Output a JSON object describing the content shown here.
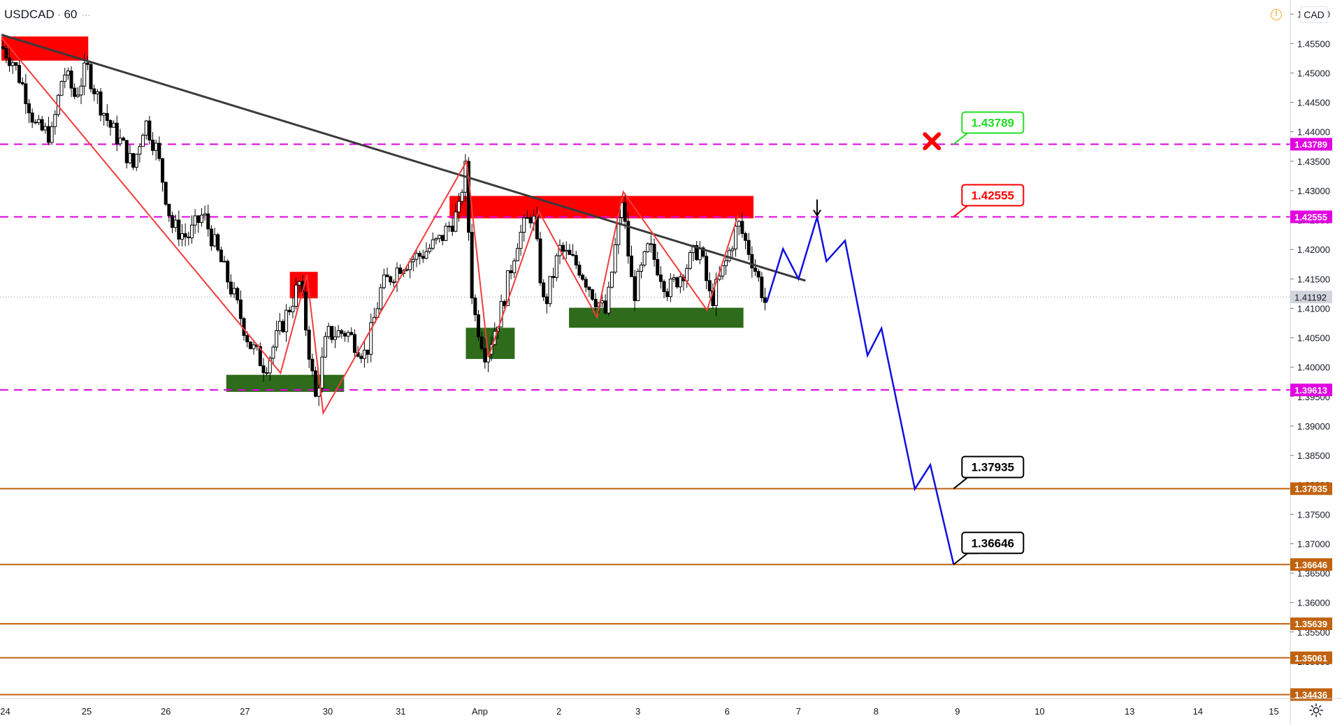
{
  "header": {
    "symbol": "USDCAD",
    "interval": "60",
    "currency": "CAD",
    "menu_glyph": "···"
  },
  "icons": {
    "warning": "warning-icon",
    "settings": "gear-icon",
    "arrow": "down-arrow-icon",
    "cross": "close-icon"
  },
  "colors": {
    "bull_candle": "#ffffff",
    "bear_candle": "#000000",
    "resistance_zone": "#ff0000",
    "support_zone": "#2e6b1a",
    "magenta_level": "#e000e0",
    "orange_level": "#c0620e",
    "trendline": "#3a3a3a",
    "zigzag": "#f23c3c",
    "projection": "#1010e0",
    "target_green": "#22dd22",
    "target_red": "#ff0000"
  },
  "chart_data": {
    "type": "candlestick",
    "title": "USDCAD · 60",
    "ylim": [
      1.3437,
      1.4624
    ],
    "y_ticks": [
      "1.46000",
      "1.45500",
      "1.45000",
      "1.44500",
      "1.44000",
      "1.43500",
      "1.43000",
      "1.42500",
      "1.42000",
      "1.41500",
      "1.41000",
      "1.40500",
      "1.40000",
      "1.39500",
      "1.39000",
      "1.38500",
      "1.38000",
      "1.37500",
      "1.37000",
      "1.36500",
      "1.36000",
      "1.35500",
      "1.35000"
    ],
    "x_ticks": [
      {
        "label": "24",
        "x": 0.05
      },
      {
        "label": "25",
        "x": 1.1
      },
      {
        "label": "26",
        "x": 2.12
      },
      {
        "label": "27",
        "x": 3.14
      },
      {
        "label": "30",
        "x": 4.21
      },
      {
        "label": "31",
        "x": 5.15
      },
      {
        "label": "Апр",
        "x": 6.17
      },
      {
        "label": "2",
        "x": 7.19
      },
      {
        "label": "3",
        "x": 8.21
      },
      {
        "label": "6",
        "x": 9.36
      },
      {
        "label": "7",
        "x": 10.28
      },
      {
        "label": "8",
        "x": 11.28
      },
      {
        "label": "9",
        "x": 12.33
      },
      {
        "label": "10",
        "x": 13.39
      },
      {
        "label": "13",
        "x": 14.55
      },
      {
        "label": "14",
        "x": 15.43
      },
      {
        "label": "15",
        "x": 16.41
      }
    ],
    "xlim": [
      0,
      16.55
    ],
    "price_path": [
      [
        0.0,
        1.4545
      ],
      [
        0.15,
        1.452
      ],
      [
        0.3,
        1.447
      ],
      [
        0.45,
        1.4405
      ],
      [
        0.65,
        1.4395
      ],
      [
        0.8,
        1.4505
      ],
      [
        0.95,
        1.446
      ],
      [
        1.1,
        1.451
      ],
      [
        1.25,
        1.4455
      ],
      [
        1.4,
        1.441
      ],
      [
        1.55,
        1.438
      ],
      [
        1.7,
        1.434
      ],
      [
        1.85,
        1.442
      ],
      [
        2.0,
        1.437
      ],
      [
        2.2,
        1.424
      ],
      [
        2.4,
        1.422
      ],
      [
        2.6,
        1.426
      ],
      [
        2.8,
        1.419
      ],
      [
        3.0,
        1.412
      ],
      [
        3.2,
        1.404
      ],
      [
        3.4,
        1.4
      ],
      [
        3.6,
        1.4065
      ],
      [
        3.85,
        1.4145
      ],
      [
        4.05,
        1.3945
      ],
      [
        4.2,
        1.4055
      ],
      [
        4.45,
        1.406
      ],
      [
        4.7,
        1.402
      ],
      [
        4.9,
        1.4135
      ],
      [
        5.15,
        1.4175
      ],
      [
        5.4,
        1.419
      ],
      [
        5.65,
        1.4215
      ],
      [
        5.9,
        1.4265
      ],
      [
        5.98,
        1.4345
      ],
      [
        6.08,
        1.41
      ],
      [
        6.25,
        1.402
      ],
      [
        6.45,
        1.41
      ],
      [
        6.65,
        1.4215
      ],
      [
        6.85,
        1.4265
      ],
      [
        7.0,
        1.41
      ],
      [
        7.2,
        1.42
      ],
      [
        7.45,
        1.417
      ],
      [
        7.65,
        1.412
      ],
      [
        7.8,
        1.409
      ],
      [
        8.0,
        1.4285
      ],
      [
        8.15,
        1.412
      ],
      [
        8.35,
        1.4205
      ],
      [
        8.6,
        1.413
      ],
      [
        8.8,
        1.4165
      ],
      [
        9.0,
        1.4205
      ],
      [
        9.15,
        1.411
      ],
      [
        9.35,
        1.418
      ],
      [
        9.5,
        1.4245
      ],
      [
        9.65,
        1.4195
      ],
      [
        9.75,
        1.4155
      ],
      [
        9.85,
        1.411
      ]
    ],
    "zigzag": [
      [
        0.0,
        1.456
      ],
      [
        3.6,
        1.399
      ],
      [
        3.94,
        1.4157
      ],
      [
        4.15,
        1.3922
      ],
      [
        6.0,
        1.435
      ],
      [
        6.28,
        1.4017
      ],
      [
        6.93,
        1.4265
      ],
      [
        7.68,
        1.4085
      ],
      [
        8.02,
        1.4298
      ],
      [
        9.1,
        1.4097
      ],
      [
        9.5,
        1.4258
      ]
    ],
    "trendline": [
      [
        0.0,
        1.4565
      ],
      [
        10.37,
        1.4147
      ]
    ],
    "projection": [
      [
        9.87,
        1.411
      ],
      [
        10.08,
        1.4201
      ],
      [
        10.28,
        1.415
      ],
      [
        10.52,
        1.4255
      ],
      [
        10.64,
        1.418
      ],
      [
        10.88,
        1.4215
      ],
      [
        11.17,
        1.402
      ],
      [
        11.35,
        1.4066
      ],
      [
        11.78,
        1.3793
      ],
      [
        11.98,
        1.3834
      ],
      [
        12.28,
        1.3665
      ]
    ],
    "resistance_zones": [
      {
        "x": [
          0.0,
          1.12
        ],
        "y": [
          1.4521,
          1.4562
        ]
      },
      {
        "x": [
          3.72,
          4.08
        ],
        "y": [
          1.4117,
          1.4162
        ]
      },
      {
        "x": [
          5.78,
          9.7
        ],
        "y": [
          1.4253,
          1.4291
        ]
      }
    ],
    "support_zones": [
      {
        "x": [
          2.9,
          4.42
        ],
        "y": [
          1.3958,
          1.3987
        ]
      },
      {
        "x": [
          5.99,
          6.62
        ],
        "y": [
          1.4014,
          1.4067
        ]
      },
      {
        "x": [
          7.32,
          9.57
        ],
        "y": [
          1.4067,
          1.4101
        ]
      }
    ],
    "levels": [
      {
        "price": 1.43789,
        "label": "1.43789",
        "style": "magenta-dashed",
        "axis_bg": "#e000e0"
      },
      {
        "price": 1.42555,
        "label": "1.42555",
        "style": "magenta-dashed",
        "axis_bg": "#e000e0"
      },
      {
        "price": 1.39613,
        "label": "1.39613",
        "style": "magenta-dashed",
        "axis_bg": "#e000e0"
      },
      {
        "price": 1.37935,
        "label": "1.37935",
        "style": "orange-solid",
        "axis_bg": "#c0620e"
      },
      {
        "price": 1.36646,
        "label": "1.36646",
        "style": "orange-solid",
        "axis_bg": "#c0620e"
      },
      {
        "price": 1.35639,
        "label": "1.35639",
        "style": "orange-solid",
        "axis_bg": "#c0620e"
      },
      {
        "price": 1.35061,
        "label": "1.35061",
        "style": "orange-solid",
        "axis_bg": "#c0620e"
      },
      {
        "price": 1.34436,
        "label": "1.34436",
        "style": "orange-solid",
        "axis_bg": "#c0620e"
      }
    ],
    "current_price": {
      "price": 1.41192,
      "label": "1.41192"
    },
    "callouts": [
      {
        "label": "1.43789",
        "anchor": [
          12.28,
          1.43789
        ],
        "color": "#22dd22",
        "text_color": "#22dd22"
      },
      {
        "label": "1.42555",
        "anchor": [
          12.28,
          1.42555
        ],
        "color": "#ff0000",
        "text_color": "#ff0000"
      },
      {
        "label": "1.37935",
        "anchor": [
          12.28,
          1.37935
        ],
        "color": "#000000",
        "text_color": "#000000"
      },
      {
        "label": "1.36646",
        "anchor": [
          12.28,
          1.36646
        ],
        "color": "#000000",
        "text_color": "#000000"
      }
    ],
    "down_arrow": {
      "x": 10.52,
      "y": 1.4285
    },
    "invalidation_cross": {
      "x": 12.0,
      "y": 1.4384
    }
  }
}
